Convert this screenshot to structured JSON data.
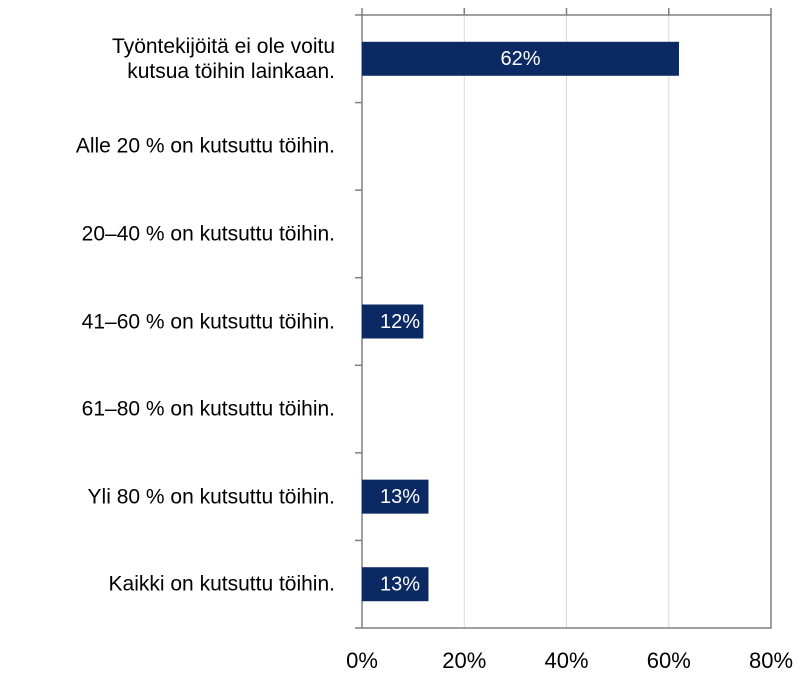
{
  "chart_data": {
    "type": "bar",
    "orientation": "horizontal",
    "categories": [
      "Työntekijöitä ei ole voitu\nkutsua töihin lainkaan.",
      "Alle 20 % on kutsuttu töihin.",
      "20–40 % on kutsuttu töihin.",
      "41–60 % on kutsuttu töihin.",
      "61–80 % on kutsuttu töihin.",
      "Yli 80 % on kutsuttu töihin.",
      "Kaikki on kutsuttu töihin."
    ],
    "values": [
      62,
      null,
      null,
      12,
      null,
      13,
      13
    ],
    "value_labels": [
      "62%",
      null,
      null,
      "12%",
      null,
      "13%",
      "13%"
    ],
    "color": "#0b2a63",
    "xlim": [
      0,
      80
    ],
    "xticks": [
      {
        "value": 0,
        "label": "0%"
      },
      {
        "value": 20,
        "label": "20%"
      },
      {
        "value": 40,
        "label": "40%"
      },
      {
        "value": 60,
        "label": "60%"
      },
      {
        "value": 80,
        "label": "80%"
      }
    ],
    "grid": true
  }
}
